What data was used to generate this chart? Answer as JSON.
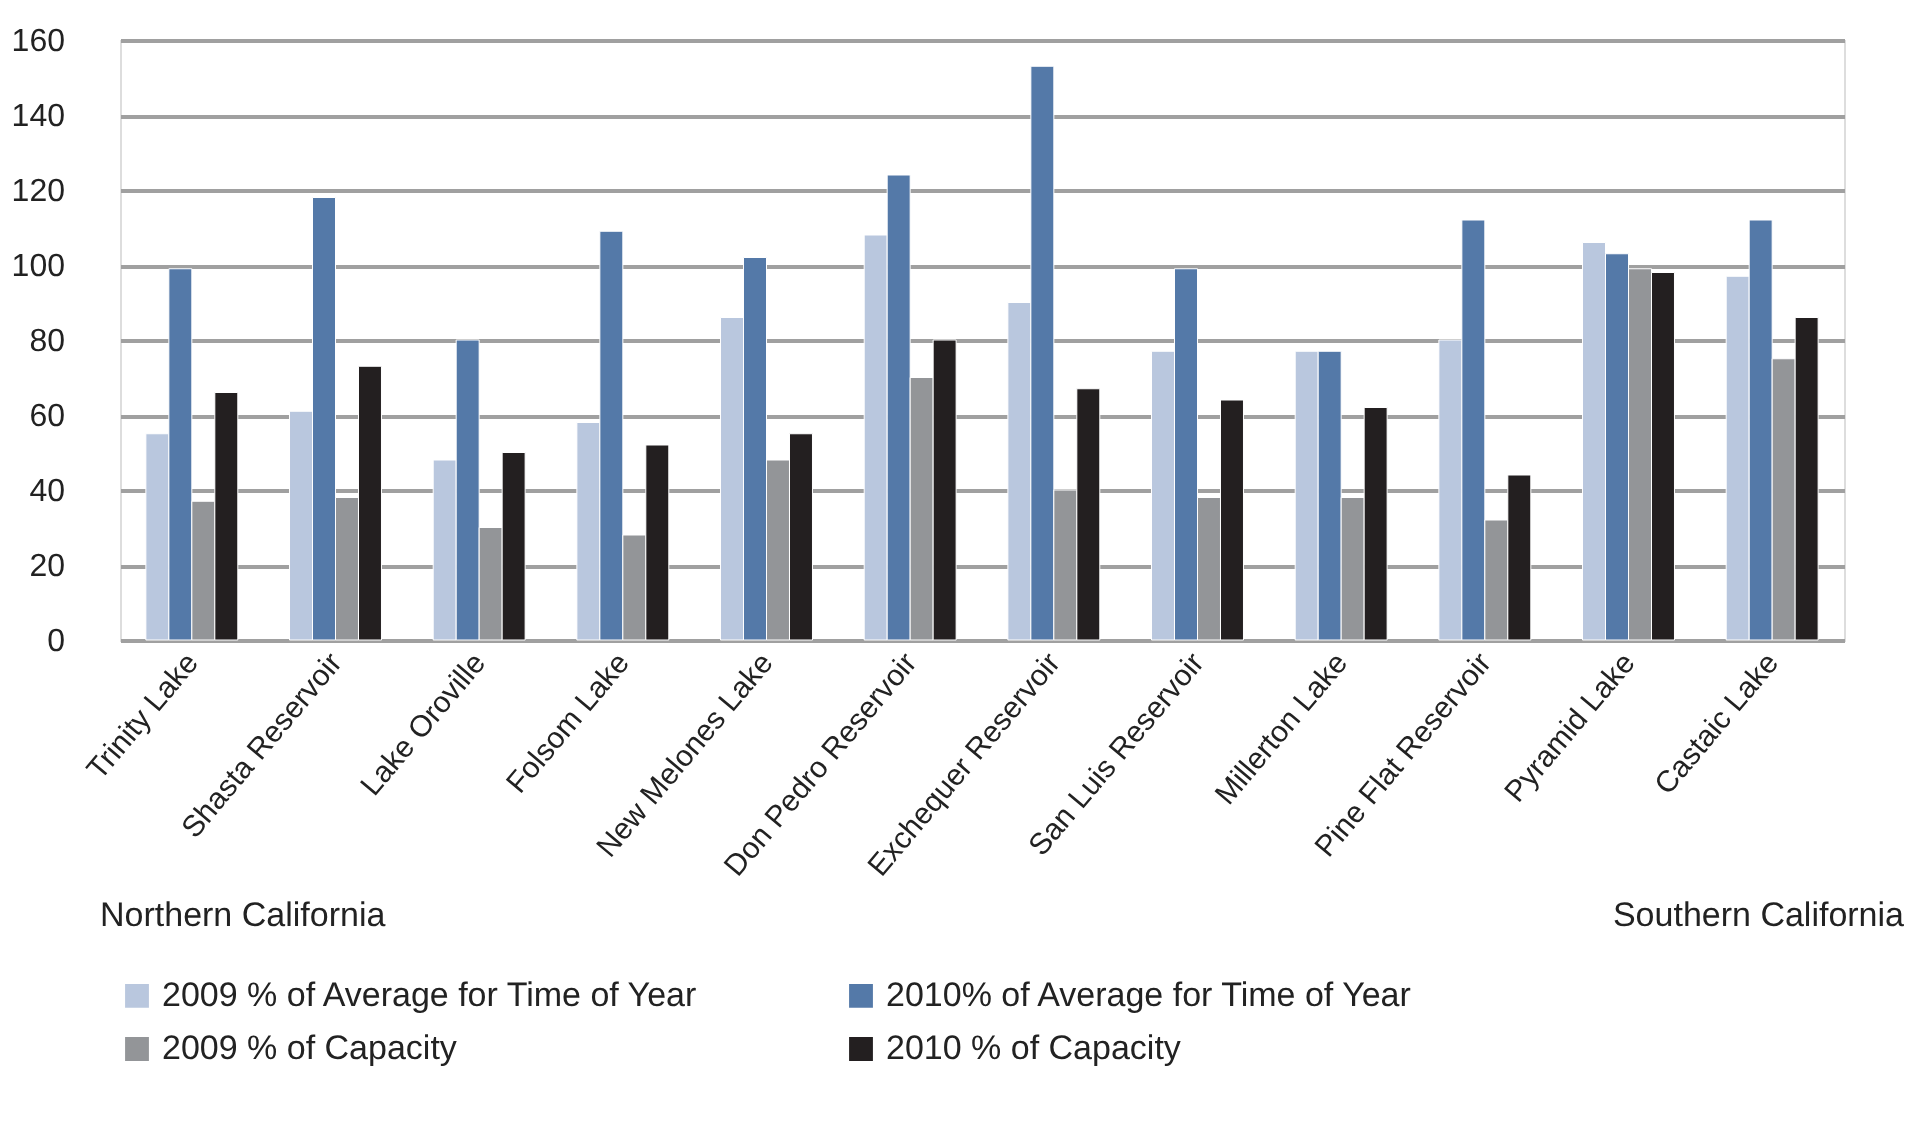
{
  "chart_data": {
    "type": "bar",
    "categories": [
      "Trinity Lake",
      "Shasta Reservoir",
      "Lake Oroville",
      "Folsom Lake",
      "New Melones Lake",
      "Don Pedro Reservoir",
      "Exchequer Reservoir",
      "San Luis Reservoir",
      "Millerton Lake",
      "Pine Flat Reservoir",
      "Pyramid Lake",
      "Castaic Lake"
    ],
    "series": [
      {
        "name": "2009 % of Average for Time of Year",
        "color": "#b9c7de",
        "values": [
          55,
          61,
          48,
          58,
          86,
          108,
          90,
          77,
          77,
          80,
          106,
          97
        ]
      },
      {
        "name": "2010% of Average for Time of Year",
        "color": "#5479a8",
        "values": [
          99,
          118,
          80,
          109,
          102,
          124,
          153,
          99,
          77,
          112,
          103,
          112
        ]
      },
      {
        "name": "2009 % of Capacity",
        "color": "#939598",
        "values": [
          37,
          38,
          30,
          28,
          48,
          70,
          40,
          38,
          38,
          32,
          99,
          75
        ]
      },
      {
        "name": "2010 % of Capacity",
        "color": "#231f20",
        "values": [
          66,
          73,
          50,
          52,
          55,
          80,
          67,
          64,
          62,
          44,
          98,
          86
        ]
      }
    ],
    "ylim": [
      0,
      160
    ],
    "yticks": [
      0,
      20,
      40,
      60,
      80,
      100,
      120,
      140,
      160
    ],
    "grid": "y",
    "legend": "bottom",
    "annotations": [
      "Northern California",
      "Southern California"
    ]
  }
}
